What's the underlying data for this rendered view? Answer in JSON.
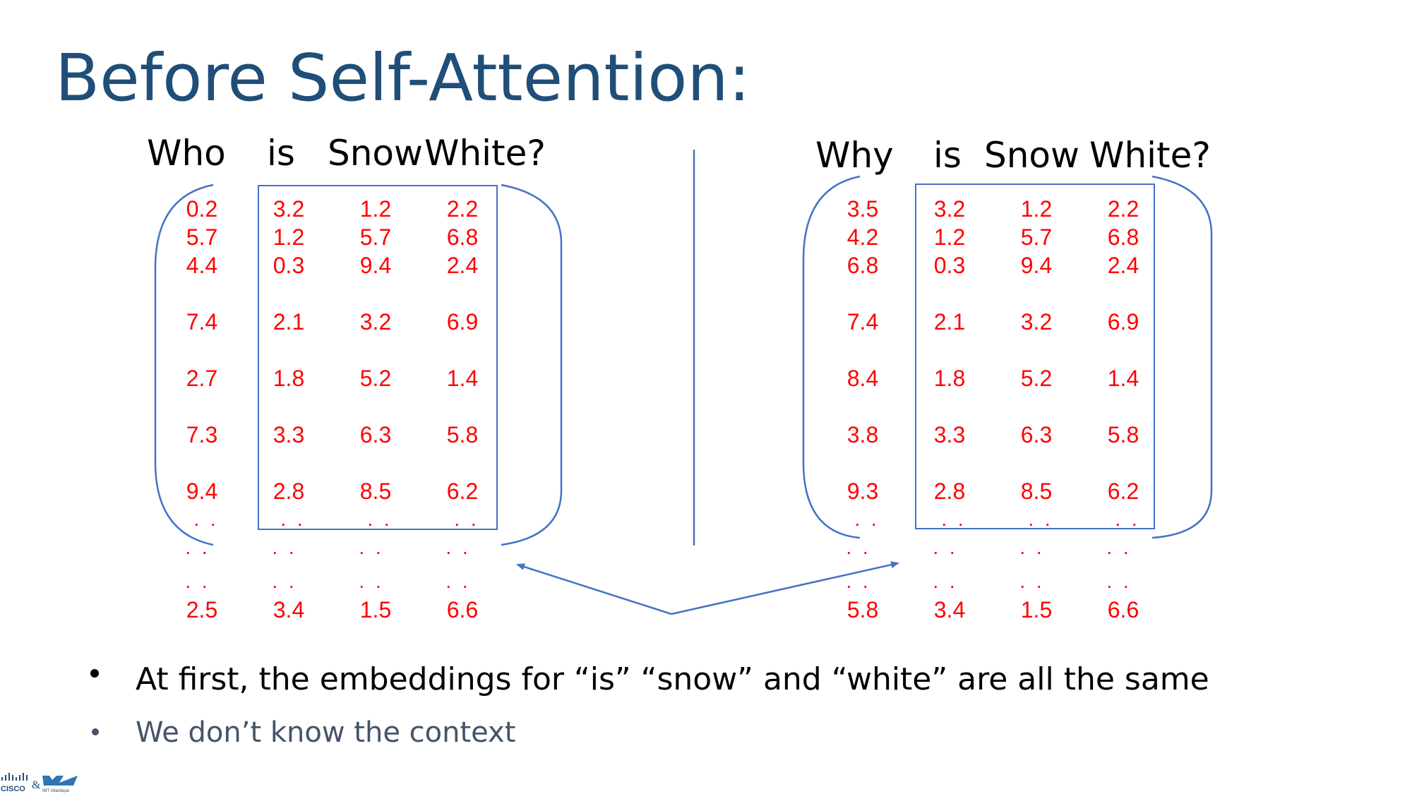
{
  "slide": {
    "title": "Before Self-Attention:"
  },
  "left": {
    "sentence": [
      "Who",
      "is",
      "Snow",
      "White?"
    ],
    "columns": [
      [
        "0.2",
        "5.7",
        "4.4",
        "7.4",
        "2.7",
        "7.3",
        "9.4",
        ". .",
        ". .",
        ". .",
        "2.5"
      ],
      [
        "3.2",
        "1.2",
        "0.3",
        "2.1",
        "1.8",
        "3.3",
        "2.8",
        ". .",
        ". .",
        ". .",
        "3.4"
      ],
      [
        "1.2",
        "5.7",
        "9.4",
        "3.2",
        "5.2",
        "6.3",
        "8.5",
        ". .",
        ". .",
        ". .",
        "1.5"
      ],
      [
        "2.2",
        "6.8",
        "2.4",
        "6.9",
        "1.4",
        "5.8",
        "6.2",
        ". .",
        ". .",
        ". .",
        "6.6"
      ]
    ]
  },
  "right": {
    "sentence": [
      "Why",
      "is",
      "Snow",
      "White?"
    ],
    "columns": [
      [
        "3.5",
        "4.2",
        "6.8",
        "7.4",
        "8.4",
        "3.8",
        "9.3",
        ". .",
        ". .",
        ". .",
        "5.8"
      ],
      [
        "3.2",
        "1.2",
        "0.3",
        "2.1",
        "1.8",
        "3.3",
        "2.8",
        ". .",
        ". .",
        ". .",
        "3.4"
      ],
      [
        "1.2",
        "5.7",
        "9.4",
        "3.2",
        "5.2",
        "6.3",
        "8.5",
        ". .",
        ". .",
        ". .",
        "1.5"
      ],
      [
        "2.2",
        "6.8",
        "2.4",
        "6.9",
        "1.4",
        "5.8",
        "6.2",
        ". .",
        ". .",
        ". .",
        "6.6"
      ]
    ]
  },
  "bullets": [
    {
      "text": "At first, the embeddings for “is” “snow” and “white” are all the same",
      "level": 1
    },
    {
      "text": "We don’t know the context",
      "level": 2
    }
  ],
  "logo": {
    "left_mark": "CISCO",
    "joiner": "&",
    "right_mark": "IMT Atlantique"
  },
  "colors": {
    "title": "#1F4E79",
    "values": "#FF0000",
    "lines": "#4472C4",
    "bullet_primary": "#000000",
    "bullet_secondary": "#44546A"
  }
}
